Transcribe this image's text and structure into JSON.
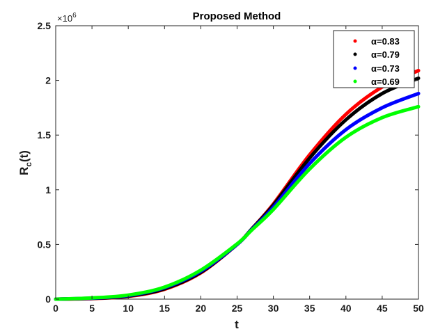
{
  "chart_data": {
    "type": "line",
    "title": "Proposed Method",
    "xlabel": "t",
    "ylabel_main": "R",
    "ylabel_sub": "c",
    "ylabel_suffix": "(t)",
    "y_multiplier_base": "×10",
    "y_multiplier_exp": "6",
    "xlim": [
      0,
      50
    ],
    "ylim": [
      0,
      2.5
    ],
    "x_ticks": [
      0,
      5,
      10,
      15,
      20,
      25,
      30,
      35,
      40,
      45,
      50
    ],
    "x_tick_labels": [
      "0",
      "5",
      "10",
      "15",
      "20",
      "25",
      "30",
      "35",
      "40",
      "45",
      "50"
    ],
    "y_ticks": [
      0,
      0.5,
      1,
      1.5,
      2,
      2.5
    ],
    "y_tick_labels": [
      "0",
      "0.5",
      "1",
      "1.5",
      "2",
      "2.5"
    ],
    "legend_position": "top-right",
    "grid": false,
    "x": [
      0,
      5,
      10,
      15,
      20,
      25,
      27,
      30,
      35,
      40,
      45,
      50
    ],
    "series": [
      {
        "name": "α=0.83",
        "color": "#ff0000",
        "values": [
          0,
          0.005,
          0.025,
          0.09,
          0.24,
          0.5,
          0.64,
          0.87,
          1.32,
          1.69,
          1.94,
          2.09
        ]
      },
      {
        "name": "α=0.79",
        "color": "#000000",
        "values": [
          0,
          0.007,
          0.028,
          0.095,
          0.245,
          0.5,
          0.64,
          0.86,
          1.29,
          1.64,
          1.88,
          2.02
        ]
      },
      {
        "name": "α=0.73",
        "color": "#0000ff",
        "values": [
          0,
          0.009,
          0.033,
          0.105,
          0.255,
          0.5,
          0.635,
          0.84,
          1.24,
          1.55,
          1.75,
          1.88
        ]
      },
      {
        "name": "α=0.69",
        "color": "#00ff00",
        "values": [
          0,
          0.011,
          0.037,
          0.11,
          0.265,
          0.505,
          0.63,
          0.82,
          1.19,
          1.48,
          1.66,
          1.76
        ]
      }
    ]
  }
}
